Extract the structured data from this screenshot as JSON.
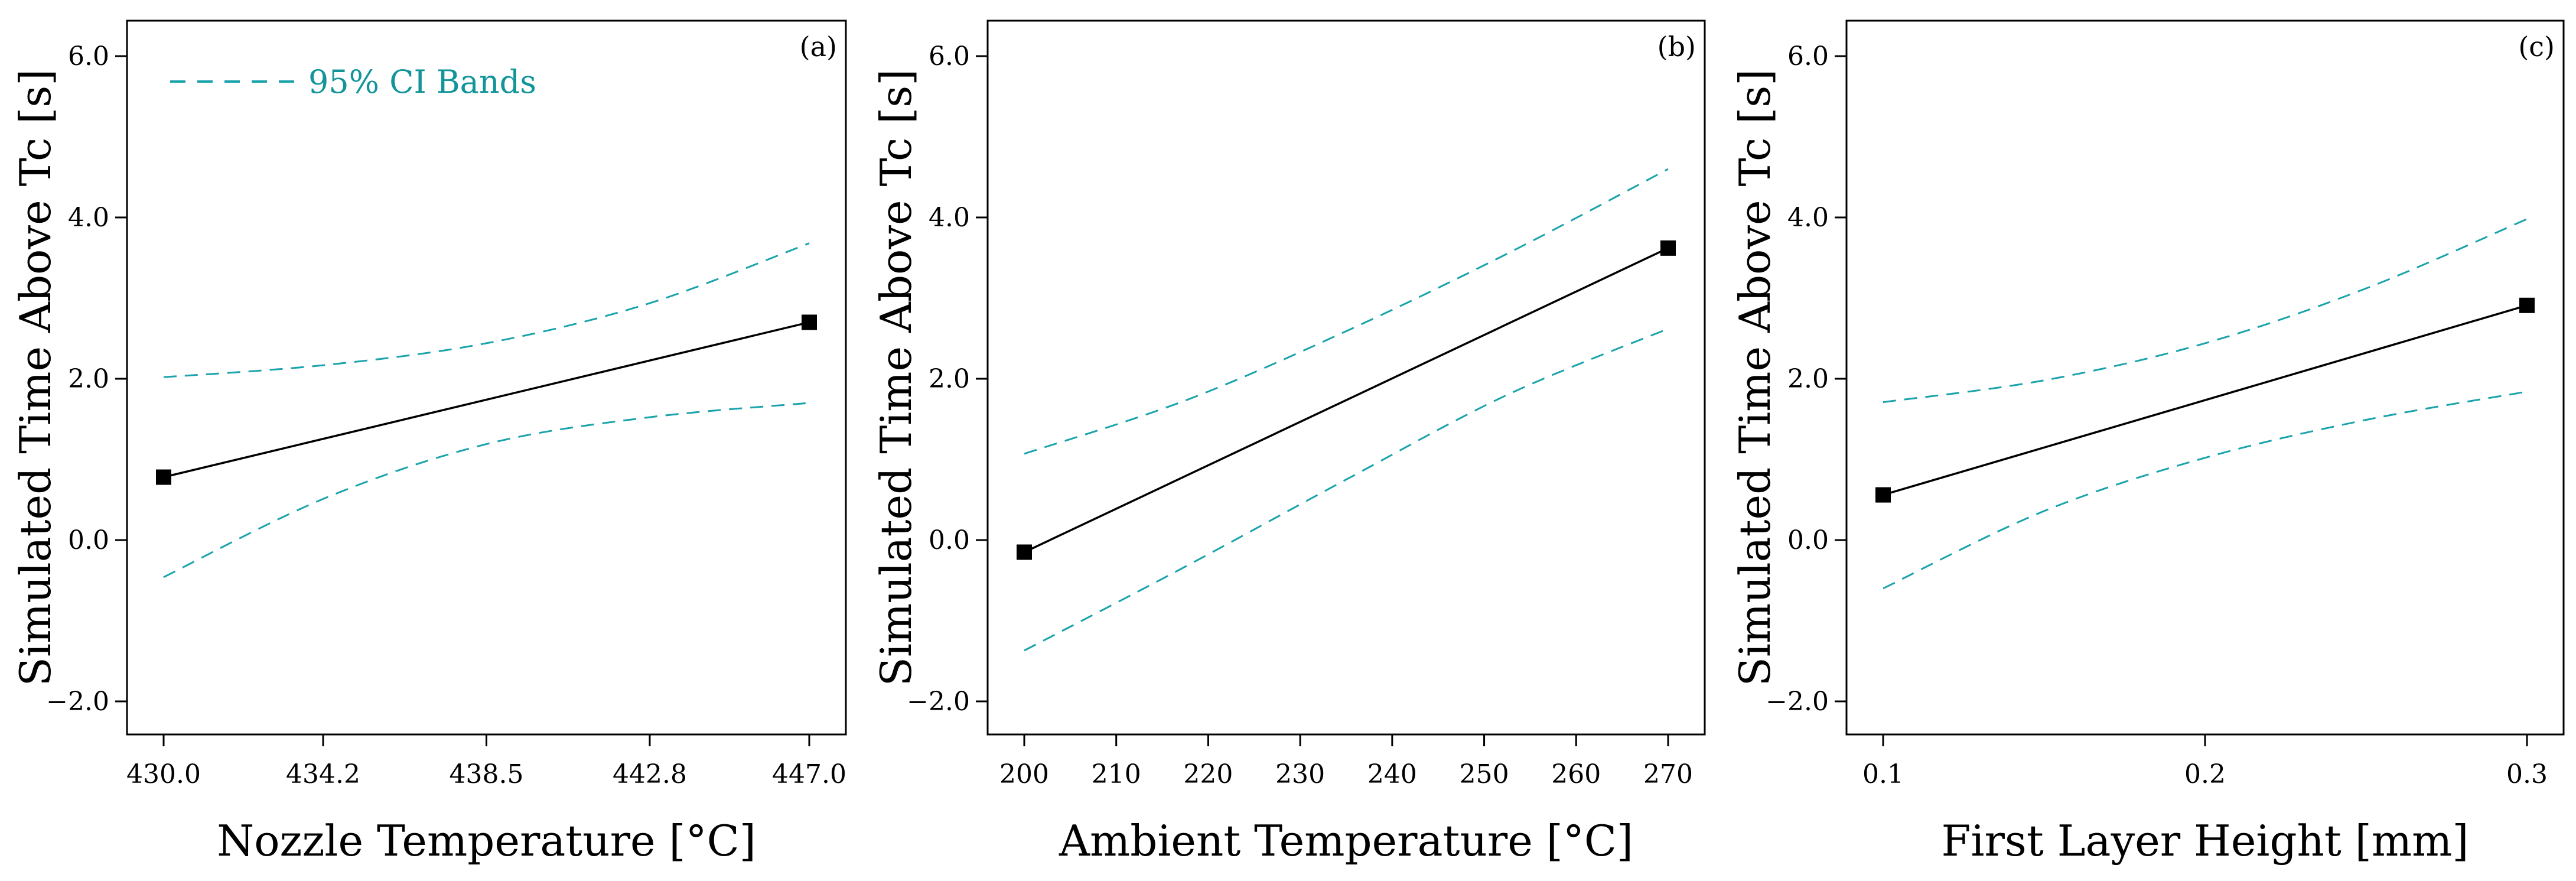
{
  "colors": {
    "main_line": "#000000",
    "ci_band": "#1aa3ab",
    "legend_text": "#12959a"
  },
  "legend": {
    "label": "95% CI Bands"
  },
  "chart_data": [
    {
      "type": "line",
      "panel": "(a)",
      "xlabel": "Nozzle Temperature [°C]",
      "ylabel": "Simulated Time Above Tc [s]",
      "xlim": [
        430.0,
        447.0
      ],
      "ylim": [
        -2.0,
        6.0
      ],
      "xticks": [
        430.0,
        434.2,
        438.5,
        442.8,
        447.0
      ],
      "xtick_labels": [
        "430.0",
        "434.2",
        "438.5",
        "442.8",
        "447.0"
      ],
      "yticks": [
        -2.0,
        0.0,
        2.0,
        4.0,
        6.0
      ],
      "ytick_labels": [
        "−2.0",
        "0.0",
        "2.0",
        "4.0",
        "6.0"
      ],
      "series": [
        {
          "name": "Fit",
          "x": [
            430.0,
            447.0
          ],
          "y": [
            0.78,
            2.7
          ]
        },
        {
          "name": "95% CI Upper",
          "x": [
            430.0,
            434.25,
            438.5,
            442.75,
            447.0
          ],
          "y": [
            2.02,
            2.17,
            2.44,
            2.93,
            3.68
          ]
        },
        {
          "name": "95% CI Lower",
          "x": [
            430.0,
            434.25,
            438.5,
            442.75,
            447.0
          ],
          "y": [
            -0.46,
            0.52,
            1.19,
            1.52,
            1.7
          ]
        }
      ]
    },
    {
      "type": "line",
      "panel": "(b)",
      "xlabel": "Ambient Temperature [°C]",
      "ylabel": "Simulated Time Above Tc [s]",
      "xlim": [
        200,
        270
      ],
      "ylim": [
        -2.0,
        6.0
      ],
      "xticks": [
        200,
        210,
        220,
        230,
        240,
        250,
        260,
        270
      ],
      "xtick_labels": [
        "200",
        "210",
        "220",
        "230",
        "240",
        "250",
        "260",
        "270"
      ],
      "yticks": [
        -2.0,
        0.0,
        2.0,
        4.0,
        6.0
      ],
      "ytick_labels": [
        "−2.0",
        "0.0",
        "2.0",
        "4.0",
        "6.0"
      ],
      "series": [
        {
          "name": "Fit",
          "x": [
            200,
            270
          ],
          "y": [
            -0.15,
            3.62
          ]
        },
        {
          "name": "95% CI Upper",
          "x": [
            200,
            217.5,
            235,
            252.5,
            270
          ],
          "y": [
            1.07,
            1.73,
            2.59,
            3.55,
            4.6
          ]
        },
        {
          "name": "95% CI Lower",
          "x": [
            200,
            217.5,
            235,
            252.5,
            270
          ],
          "y": [
            -1.37,
            -0.33,
            0.75,
            1.8,
            2.62
          ]
        }
      ]
    },
    {
      "type": "line",
      "panel": "(c)",
      "xlabel": "First Layer Height [mm]",
      "ylabel": "Simulated Time Above Tc [s]",
      "xlim": [
        0.1,
        0.3
      ],
      "ylim": [
        -2.0,
        6.0
      ],
      "xticks": [
        0.1,
        0.2,
        0.3
      ],
      "xtick_labels": [
        "0.1",
        "0.2",
        "0.3"
      ],
      "yticks": [
        -2.0,
        0.0,
        2.0,
        4.0,
        6.0
      ],
      "ytick_labels": [
        "−2.0",
        "0.0",
        "2.0",
        "4.0",
        "6.0"
      ],
      "series": [
        {
          "name": "Fit",
          "x": [
            0.1,
            0.3
          ],
          "y": [
            0.56,
            2.91
          ]
        },
        {
          "name": "95% CI Upper",
          "x": [
            0.1,
            0.15,
            0.2,
            0.25,
            0.3
          ],
          "y": [
            1.71,
            1.98,
            2.44,
            3.12,
            3.98
          ]
        },
        {
          "name": "95% CI Lower",
          "x": [
            0.1,
            0.15,
            0.2,
            0.25,
            0.3
          ],
          "y": [
            -0.6,
            0.36,
            1.02,
            1.49,
            1.84
          ]
        }
      ]
    }
  ]
}
